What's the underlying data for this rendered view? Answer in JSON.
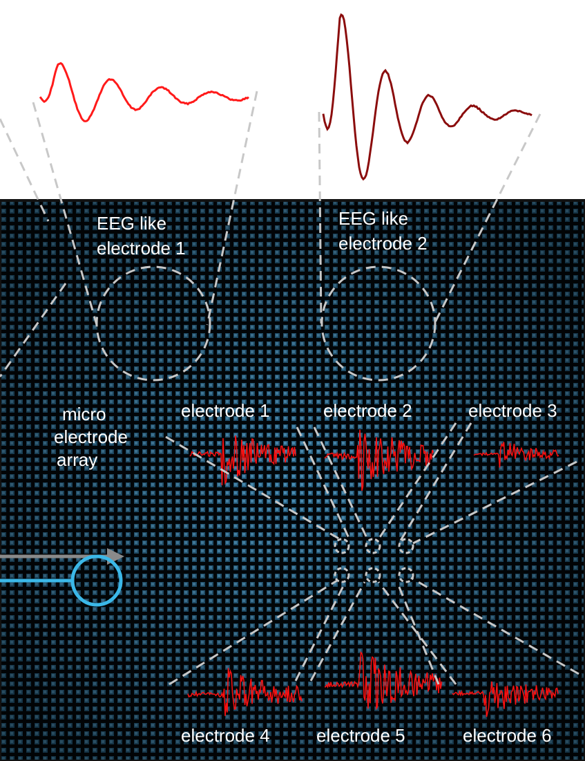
{
  "eeg_labels": [
    {
      "lines": [
        "EEG like",
        "electrode 1"
      ]
    },
    {
      "lines": [
        "EEG like",
        "electrode 2"
      ]
    }
  ],
  "array_label": {
    "lines": [
      "micro",
      "electrode",
      "array"
    ]
  },
  "electrodes": [
    "electrode 1",
    "electrode 2",
    "electrode 3",
    "electrode 4",
    "electrode 5",
    "electrode 6"
  ]
}
